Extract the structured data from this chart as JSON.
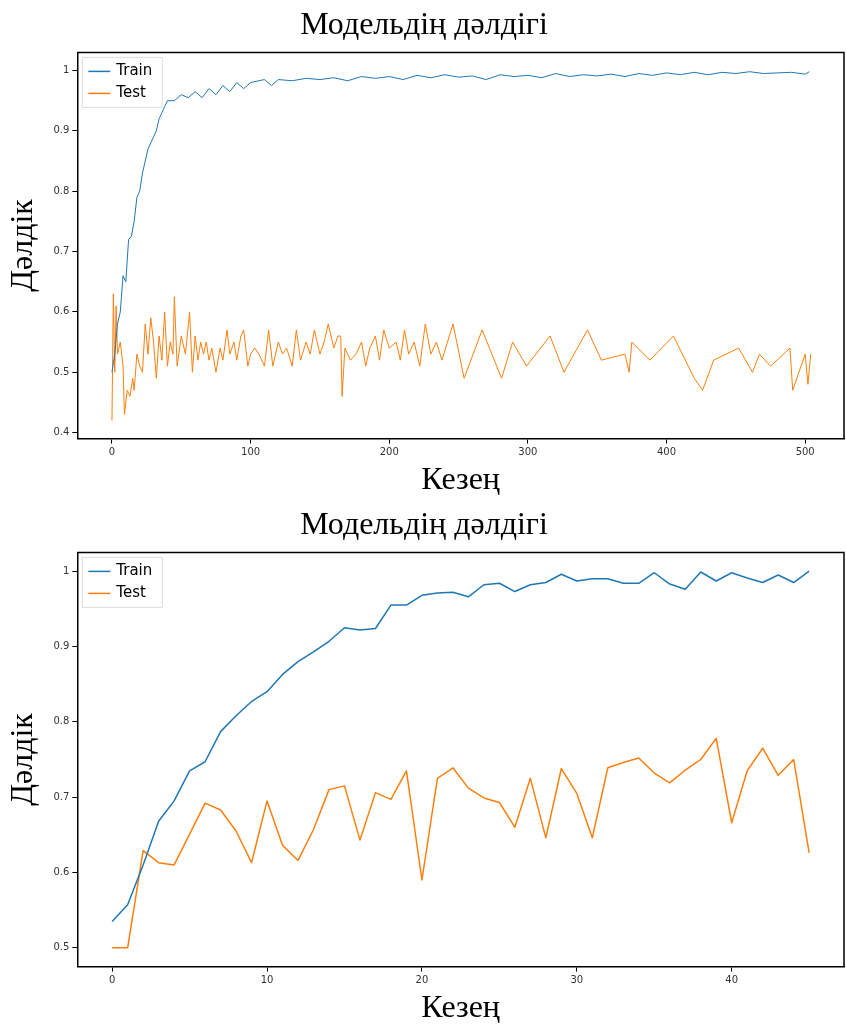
{
  "chart_data": [
    {
      "type": "line",
      "title": "Модельдің дәлдігі",
      "xlabel": "Кезең",
      "ylabel": "Дәлдік",
      "legend": "top left",
      "grid": false,
      "marker": "none",
      "line_style": "solid",
      "xlim": [
        -25,
        528
      ],
      "xticks": [
        0,
        100,
        200,
        300,
        400,
        500
      ],
      "ylim": [
        0.39,
        1.03
      ],
      "yticks": [
        0.4,
        0.5,
        0.6,
        0.7,
        0.8,
        0.9,
        1.0
      ],
      "series": [
        {
          "name": "Train",
          "color": "#1f77b4",
          "x": [
            0,
            2,
            4,
            6,
            8,
            10,
            12,
            14,
            16,
            18,
            20,
            22,
            24,
            26,
            28,
            30,
            32,
            34,
            36,
            38,
            40,
            45,
            50,
            55,
            60,
            65,
            70,
            75,
            80,
            85,
            90,
            95,
            100,
            110,
            115,
            120,
            130,
            140,
            150,
            160,
            170,
            180,
            190,
            200,
            210,
            220,
            230,
            240,
            250,
            260,
            270,
            280,
            290,
            300,
            310,
            320,
            330,
            340,
            350,
            360,
            370,
            380,
            390,
            400,
            410,
            420,
            430,
            440,
            450,
            460,
            470,
            480,
            490,
            500,
            503
          ],
          "values": [
            0.5,
            0.53,
            0.58,
            0.6,
            0.66,
            0.65,
            0.72,
            0.725,
            0.75,
            0.79,
            0.8,
            0.83,
            0.85,
            0.87,
            0.88,
            0.89,
            0.9,
            0.92,
            0.93,
            0.94,
            0.95,
            0.95,
            0.96,
            0.955,
            0.965,
            0.955,
            0.97,
            0.96,
            0.975,
            0.965,
            0.98,
            0.97,
            0.98,
            0.985,
            0.975,
            0.985,
            0.983,
            0.987,
            0.985,
            0.988,
            0.983,
            0.99,
            0.987,
            0.99,
            0.985,
            0.992,
            0.988,
            0.993,
            0.989,
            0.991,
            0.985,
            0.993,
            0.99,
            0.992,
            0.988,
            0.995,
            0.99,
            0.993,
            0.991,
            0.994,
            0.99,
            0.995,
            0.992,
            0.996,
            0.993,
            0.997,
            0.993,
            0.997,
            0.995,
            0.998,
            0.995,
            0.996,
            0.997,
            0.994,
            0.998
          ]
        },
        {
          "name": "Test",
          "color": "#ff7f0e",
          "x": [
            0,
            1,
            2,
            3,
            4,
            6,
            8,
            9,
            11,
            13,
            15,
            16,
            18,
            20,
            22,
            24,
            26,
            28,
            30,
            32,
            34,
            36,
            38,
            40,
            42,
            44,
            45,
            47,
            50,
            53,
            56,
            58,
            60,
            62,
            64,
            66,
            68,
            70,
            72,
            75,
            78,
            80,
            83,
            85,
            88,
            90,
            93,
            95,
            98,
            100,
            103,
            106,
            110,
            113,
            116,
            120,
            123,
            126,
            130,
            133,
            136,
            140,
            143,
            146,
            150,
            153,
            156,
            160,
            163,
            165,
            166,
            168,
            172,
            176,
            180,
            183,
            186,
            190,
            193,
            196,
            200,
            205,
            208,
            211,
            214,
            218,
            222,
            226,
            230,
            234,
            238,
            246,
            254,
            267,
            281,
            289,
            299,
            316,
            326,
            343,
            353,
            370,
            373,
            375,
            388,
            405,
            420,
            426,
            434,
            452,
            462,
            467,
            475,
            489,
            491,
            500,
            502,
            504
          ],
          "values": [
            0.42,
            0.63,
            0.5,
            0.61,
            0.53,
            0.55,
            0.51,
            0.43,
            0.47,
            0.46,
            0.49,
            0.47,
            0.53,
            0.51,
            0.5,
            0.58,
            0.53,
            0.59,
            0.55,
            0.49,
            0.56,
            0.52,
            0.6,
            0.51,
            0.55,
            0.53,
            0.625,
            0.51,
            0.56,
            0.53,
            0.6,
            0.5,
            0.56,
            0.52,
            0.55,
            0.53,
            0.55,
            0.52,
            0.54,
            0.5,
            0.54,
            0.52,
            0.57,
            0.53,
            0.55,
            0.52,
            0.56,
            0.57,
            0.51,
            0.53,
            0.54,
            0.53,
            0.51,
            0.57,
            0.51,
            0.55,
            0.53,
            0.54,
            0.51,
            0.57,
            0.52,
            0.55,
            0.53,
            0.57,
            0.53,
            0.55,
            0.58,
            0.54,
            0.56,
            0.56,
            0.46,
            0.54,
            0.52,
            0.53,
            0.55,
            0.51,
            0.54,
            0.56,
            0.52,
            0.57,
            0.54,
            0.55,
            0.52,
            0.57,
            0.53,
            0.55,
            0.51,
            0.58,
            0.53,
            0.55,
            0.52,
            0.58,
            0.49,
            0.57,
            0.49,
            0.55,
            0.51,
            0.56,
            0.5,
            0.57,
            0.52,
            0.53,
            0.5,
            0.55,
            0.52,
            0.56,
            0.49,
            0.47,
            0.52,
            0.54,
            0.5,
            0.53,
            0.51,
            0.54,
            0.47,
            0.53,
            0.48,
            0.53
          ]
        }
      ]
    },
    {
      "type": "line",
      "title": "Модельдің дәлдігі",
      "xlabel": "Кезең",
      "ylabel": "Дәлдік",
      "legend": "top left",
      "grid": false,
      "marker": "none",
      "line_style": "solid",
      "x": [
        0,
        1,
        2,
        3,
        4,
        5,
        6,
        7,
        8,
        9,
        10,
        11,
        12,
        13,
        14,
        15,
        16,
        17,
        18,
        19,
        20,
        21,
        22,
        23,
        24,
        25,
        26,
        27,
        28,
        29,
        30,
        31,
        32,
        33,
        34,
        35,
        36,
        37,
        38,
        39,
        40,
        41,
        42,
        43,
        44,
        45
      ],
      "xlim": [
        -2.25,
        47.25
      ],
      "xticks": [
        0,
        10,
        20,
        30,
        40
      ],
      "ylim": [
        0.475,
        1.025
      ],
      "yticks": [
        0.5,
        0.6,
        0.7,
        0.8,
        0.9,
        1.0
      ],
      "series": [
        {
          "name": "Train",
          "color": "#1f77b4",
          "values": [
            0.535,
            0.557,
            0.61,
            0.668,
            0.695,
            0.735,
            0.747,
            0.787,
            0.808,
            0.827,
            0.84,
            0.863,
            0.88,
            0.893,
            0.907,
            0.925,
            0.922,
            0.924,
            0.955,
            0.955,
            0.968,
            0.971,
            0.972,
            0.966,
            0.982,
            0.984,
            0.973,
            0.982,
            0.985,
            0.996,
            0.987,
            0.99,
            0.99,
            0.984,
            0.984,
            0.998,
            0.983,
            0.976,
            0.999,
            0.987,
            0.998,
            0.991,
            0.985,
            0.995,
            0.985,
            1.0
          ]
        },
        {
          "name": "Test",
          "color": "#ff7f0e",
          "values": [
            0.5,
            0.5,
            0.629,
            0.613,
            0.61,
            0.651,
            0.692,
            0.683,
            0.655,
            0.613,
            0.695,
            0.636,
            0.616,
            0.657,
            0.71,
            0.715,
            0.643,
            0.706,
            0.697,
            0.735,
            0.59,
            0.725,
            0.739,
            0.712,
            0.699,
            0.693,
            0.66,
            0.725,
            0.646,
            0.738,
            0.705,
            0.646,
            0.739,
            0.746,
            0.752,
            0.732,
            0.719,
            0.736,
            0.75,
            0.778,
            0.666,
            0.735,
            0.765,
            0.729,
            0.75,
            0.626
          ]
        }
      ]
    }
  ]
}
